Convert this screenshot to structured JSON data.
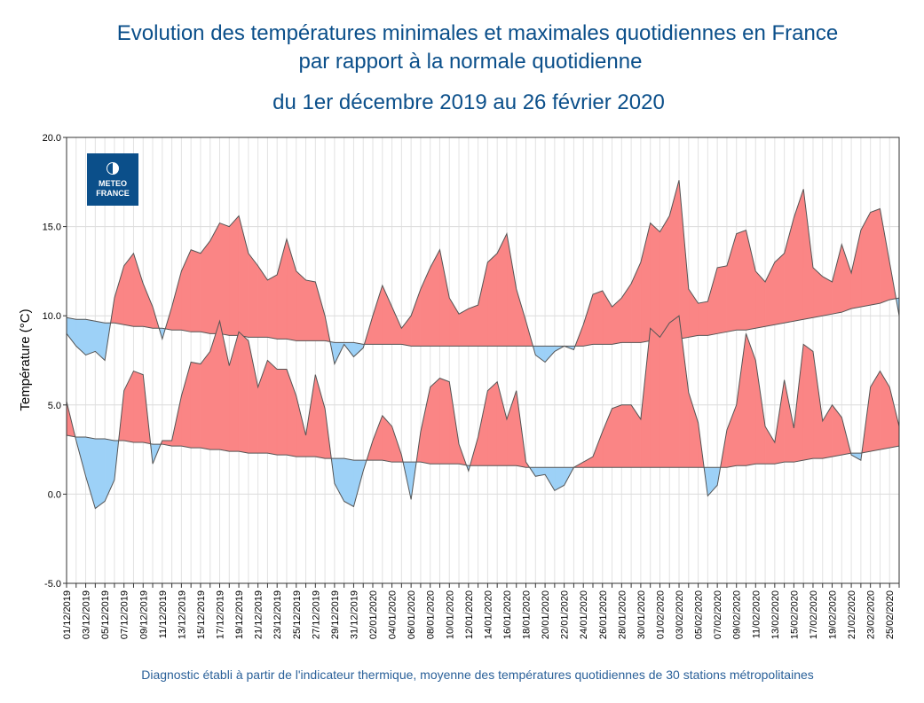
{
  "logo": [
    "METEO",
    "FRANCE"
  ],
  "chart_data": {
    "type": "band",
    "title": [
      "Evolution des températures minimales et maximales quotidiennes en France",
      "par rapport à la normale quotidienne"
    ],
    "subtitle": "du 1er décembre 2019 au 26 février 2020",
    "ylabel": "Température (°C)",
    "note": "Diagnostic établi à partir de l'indicateur thermique, moyenne des températures quotidiennes de 30 stations métropolitaines",
    "ylim": [
      -5,
      20
    ],
    "yticks": [
      {
        "value": -5,
        "label": "-5.0"
      },
      {
        "value": 0,
        "label": "0.0"
      },
      {
        "value": 5,
        "label": "5.0"
      },
      {
        "value": 10,
        "label": "10.0"
      },
      {
        "value": 15,
        "label": "15.0"
      },
      {
        "value": 20,
        "label": "20.0"
      }
    ],
    "grid": true,
    "above_color": "#fa8585",
    "below_color": "#9dd1f7",
    "line_color": "#555555",
    "categories": [
      "01/12/2019",
      null,
      "03/12/2019",
      null,
      "05/12/2019",
      null,
      "07/12/2019",
      null,
      "09/12/2019",
      null,
      "11/12/2019",
      null,
      "13/12/2019",
      null,
      "15/12/2019",
      null,
      "17/12/2019",
      null,
      "19/12/2019",
      null,
      "21/12/2019",
      null,
      "23/12/2019",
      null,
      "25/12/2019",
      null,
      "27/12/2019",
      null,
      "29/12/2019",
      null,
      "31/12/2019",
      null,
      "02/01/2020",
      null,
      "04/01/2020",
      null,
      "06/01/2020",
      null,
      "08/01/2020",
      null,
      "10/01/2020",
      null,
      "12/01/2020",
      null,
      "14/01/2020",
      null,
      "16/01/2020",
      null,
      "18/01/2020",
      null,
      "20/01/2020",
      null,
      "22/01/2020",
      null,
      "24/01/2020",
      null,
      "26/01/2020",
      null,
      "28/01/2020",
      null,
      "30/01/2020",
      null,
      "01/02/2020",
      null,
      "03/02/2020",
      null,
      "05/02/2020",
      null,
      "07/02/2020",
      null,
      "09/02/2020",
      null,
      "11/02/2020",
      null,
      "13/02/2020",
      null,
      "15/02/2020",
      null,
      "17/02/2020",
      null,
      "19/02/2020",
      null,
      "21/02/2020",
      null,
      "23/02/2020",
      null,
      "25/02/2020",
      null
    ],
    "series": [
      {
        "values": [
          9.0,
          8.3,
          7.8,
          8.0,
          7.5,
          11.0,
          12.8,
          13.5,
          11.8,
          10.5,
          8.7,
          10.5,
          12.5,
          13.7,
          13.5,
          14.2,
          15.2,
          15.0,
          15.6,
          13.5,
          12.8,
          12.0,
          12.3,
          14.3,
          12.5,
          12.0,
          11.9,
          10.0,
          7.3,
          8.4,
          7.7,
          8.2,
          10.0,
          11.7,
          10.5,
          9.3,
          10.0,
          11.5,
          12.7,
          13.7,
          11.0,
          10.1,
          10.4,
          10.6,
          13.0,
          13.5,
          14.6,
          11.5,
          9.7,
          7.8,
          7.4,
          8.0,
          8.3,
          8.1,
          9.5,
          11.2,
          11.4,
          10.5,
          11.0,
          11.8,
          13.0,
          15.2,
          14.7,
          15.6,
          17.6,
          11.5,
          10.7,
          10.8,
          12.7,
          12.8,
          14.6,
          14.8,
          12.5,
          11.9,
          13.0,
          13.5,
          15.5,
          17.1,
          12.7,
          12.2,
          11.9,
          14.0,
          12.4,
          14.8,
          15.8,
          16.0,
          13.0,
          10.0
        ],
        "normal": [
          9.9,
          9.8,
          9.8,
          9.7,
          9.6,
          9.6,
          9.5,
          9.4,
          9.4,
          9.3,
          9.3,
          9.2,
          9.2,
          9.1,
          9.1,
          9.0,
          9.0,
          8.9,
          8.9,
          8.8,
          8.8,
          8.8,
          8.7,
          8.7,
          8.6,
          8.6,
          8.6,
          8.6,
          8.5,
          8.5,
          8.5,
          8.4,
          8.4,
          8.4,
          8.4,
          8.4,
          8.3,
          8.3,
          8.3,
          8.3,
          8.3,
          8.3,
          8.3,
          8.3,
          8.3,
          8.3,
          8.3,
          8.3,
          8.3,
          8.3,
          8.3,
          8.3,
          8.3,
          8.3,
          8.3,
          8.4,
          8.4,
          8.4,
          8.5,
          8.5,
          8.5,
          8.6,
          8.6,
          8.7,
          8.7,
          8.8,
          8.9,
          8.9,
          9.0,
          9.1,
          9.2,
          9.2,
          9.3,
          9.4,
          9.5,
          9.6,
          9.7,
          9.8,
          9.9,
          10.0,
          10.1,
          10.2,
          10.4,
          10.5,
          10.6,
          10.7,
          10.9,
          11.0
        ]
      },
      {
        "values": [
          5.2,
          3.0,
          1.0,
          -0.8,
          -0.4,
          0.8,
          5.8,
          6.9,
          6.7,
          1.7,
          3.0,
          3.0,
          5.5,
          7.4,
          7.3,
          8.0,
          9.7,
          7.2,
          9.1,
          8.6,
          6.0,
          7.5,
          7.0,
          7.0,
          5.5,
          3.3,
          6.7,
          4.8,
          0.6,
          -0.4,
          -0.7,
          1.3,
          3.0,
          4.4,
          3.8,
          2.2,
          -0.3,
          3.5,
          6.0,
          6.5,
          6.3,
          2.8,
          1.3,
          3.2,
          5.8,
          6.3,
          4.2,
          5.8,
          1.8,
          1.0,
          1.1,
          0.2,
          0.5,
          1.5,
          1.8,
          2.1,
          3.5,
          4.8,
          5.0,
          5.0,
          4.2,
          9.3,
          8.8,
          9.6,
          10.0,
          5.7,
          4.0,
          -0.1,
          0.5,
          3.6,
          5.0,
          9.0,
          7.5,
          3.8,
          2.9,
          6.4,
          3.7,
          8.4,
          8.0,
          4.1,
          5.0,
          4.3,
          2.2,
          1.9,
          6.0,
          6.9,
          6.0,
          3.8
        ],
        "normal": [
          3.3,
          3.2,
          3.2,
          3.1,
          3.1,
          3.0,
          3.0,
          2.9,
          2.9,
          2.8,
          2.8,
          2.7,
          2.7,
          2.6,
          2.6,
          2.5,
          2.5,
          2.4,
          2.4,
          2.3,
          2.3,
          2.3,
          2.2,
          2.2,
          2.1,
          2.1,
          2.1,
          2.0,
          2.0,
          2.0,
          1.9,
          1.9,
          1.9,
          1.9,
          1.8,
          1.8,
          1.8,
          1.8,
          1.7,
          1.7,
          1.7,
          1.7,
          1.6,
          1.6,
          1.6,
          1.6,
          1.6,
          1.6,
          1.5,
          1.5,
          1.5,
          1.5,
          1.5,
          1.5,
          1.5,
          1.5,
          1.5,
          1.5,
          1.5,
          1.5,
          1.5,
          1.5,
          1.5,
          1.5,
          1.5,
          1.5,
          1.5,
          1.5,
          1.5,
          1.5,
          1.6,
          1.6,
          1.7,
          1.7,
          1.7,
          1.8,
          1.8,
          1.9,
          2.0,
          2.0,
          2.1,
          2.2,
          2.3,
          2.3,
          2.4,
          2.5,
          2.6,
          2.7
        ]
      }
    ]
  }
}
